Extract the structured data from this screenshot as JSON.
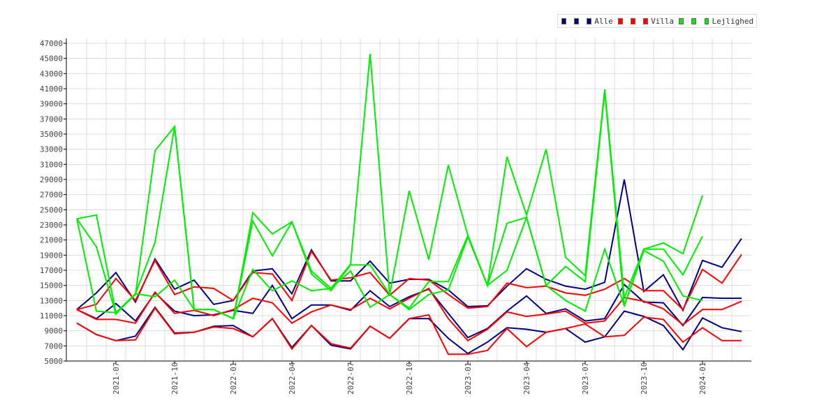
{
  "chart_data": {
    "type": "line",
    "title": "",
    "xlabel": "",
    "ylabel": "",
    "ylim": [
      5000,
      47000
    ],
    "yticks": [
      5000,
      7000,
      9000,
      11000,
      13000,
      15000,
      17000,
      19000,
      21000,
      23000,
      25000,
      27000,
      29000,
      31000,
      33000,
      35000,
      37000,
      39000,
      41000,
      43000,
      45000,
      47000
    ],
    "x": [
      "2021-05",
      "2021-06",
      "2021-07",
      "2021-08",
      "2021-09",
      "2021-10",
      "2021-11",
      "2021-12",
      "2022-01",
      "2022-02",
      "2022-03",
      "2022-04",
      "2022-05",
      "2022-06",
      "2022-07",
      "2022-08",
      "2022-09",
      "2022-10",
      "2022-11",
      "2022-12",
      "2023-01",
      "2023-02",
      "2023-03",
      "2023-04",
      "2023-05",
      "2023-06",
      "2023-07",
      "2023-08",
      "2023-09",
      "2023-10",
      "2023-11",
      "2023-12",
      "2024-01",
      "2024-02",
      "2024-03"
    ],
    "xtick_labels": [
      "2021-07",
      "2021-10",
      "2022-01",
      "2022-04",
      "2022-07",
      "2022-10",
      "2023-01",
      "2023-04",
      "2023-07",
      "2023-10",
      "2024-01"
    ],
    "xtick_index": [
      2,
      5,
      8,
      11,
      14,
      17,
      20,
      23,
      26,
      29,
      32
    ],
    "grid": true,
    "legend_position": "top-right",
    "legend": [
      {
        "label": "",
        "color": "#000080"
      },
      {
        "label": "",
        "color": "#000080"
      },
      {
        "label": "Alle",
        "color": "#000080"
      },
      {
        "label": "",
        "color": "#ff0000"
      },
      {
        "label": "",
        "color": "#ff0000"
      },
      {
        "label": "Villa",
        "color": "#ff0000"
      },
      {
        "label": "",
        "color": "#00ee00"
      },
      {
        "label": "",
        "color": "#00ee00"
      },
      {
        "label": "Lejlighed",
        "color": "#00ee00"
      }
    ],
    "series": [
      {
        "name": "Alle (max)",
        "color": "#000080",
        "values": [
          11800,
          14000,
          16700,
          12800,
          18500,
          14500,
          15700,
          12500,
          13000,
          16900,
          17200,
          13900,
          19700,
          15600,
          15600,
          18200,
          15300,
          15800,
          15800,
          14400,
          12200,
          12300,
          14900,
          17200,
          15800,
          14900,
          14500,
          15400,
          29000,
          14200,
          16400,
          11700,
          18300,
          17400,
          21200
        ]
      },
      {
        "name": "Alle (mid)",
        "color": "#000080",
        "values": [
          11800,
          10600,
          12600,
          10300,
          14000,
          11600,
          11000,
          11100,
          11700,
          11300,
          15000,
          10600,
          12400,
          12400,
          11700,
          14300,
          12200,
          13500,
          14500,
          11300,
          8100,
          9300,
          11600,
          13600,
          11300,
          11900,
          10300,
          10600,
          15100,
          12800,
          12700,
          9700,
          13400,
          13300,
          13300
        ]
      },
      {
        "name": "Alle (min)",
        "color": "#000080",
        "values": [
          10000,
          8500,
          7700,
          8300,
          12100,
          8700,
          8800,
          9600,
          9700,
          8200,
          10600,
          6800,
          9700,
          7100,
          6600,
          9600,
          8000,
          10600,
          10600,
          8000,
          6000,
          7500,
          9400,
          9200,
          8800,
          9300,
          7500,
          8200,
          11600,
          10900,
          9700,
          6500,
          10700,
          9400,
          8900
        ]
      },
      {
        "name": "Villa (max)",
        "color": "#ff0000",
        "values": [
          11800,
          12500,
          15900,
          13000,
          18300,
          13800,
          14800,
          14600,
          13000,
          16700,
          16500,
          13000,
          19500,
          15700,
          16000,
          16700,
          13700,
          15900,
          15700,
          13800,
          12000,
          12200,
          15300,
          14700,
          14900,
          14000,
          13700,
          14500,
          15900,
          14300,
          14300,
          11800,
          17100,
          15300,
          19100
        ]
      },
      {
        "name": "Villa (mid)",
        "color": "#ff0000",
        "values": [
          11800,
          10500,
          10500,
          10000,
          14100,
          11300,
          11700,
          11000,
          11800,
          13300,
          12700,
          10000,
          11500,
          12400,
          11800,
          13300,
          11900,
          13300,
          14600,
          10600,
          7700,
          9200,
          11500,
          10900,
          11200,
          11600,
          10000,
          10300,
          13400,
          12900,
          11900,
          9800,
          11800,
          11800,
          12900
        ]
      },
      {
        "name": "Villa (min)",
        "color": "#ff0000",
        "values": [
          10000,
          8500,
          7700,
          7800,
          12000,
          8600,
          8800,
          9500,
          9300,
          8200,
          10600,
          6600,
          9700,
          7300,
          6700,
          9600,
          8000,
          10600,
          11100,
          5900,
          5900,
          6400,
          9300,
          6900,
          8800,
          9300,
          9900,
          8200,
          8400,
          10800,
          10500,
          7500,
          9400,
          7700,
          7700
        ]
      },
      {
        "name": "Lejlighed (max)",
        "color": "#00ee00",
        "values": [
          23800,
          24300,
          11400,
          13800,
          32800,
          36000,
          11800,
          11800,
          10600,
          24600,
          21800,
          23400,
          16900,
          14600,
          17800,
          45600,
          13800,
          27500,
          18400,
          30900,
          21600,
          15000,
          32000,
          24300,
          33000,
          18700,
          16300,
          40900,
          13400,
          19800,
          20600,
          19200,
          26900,
          null,
          null
        ]
      },
      {
        "name": "Lejlighed (mid)",
        "color": "#00ee00",
        "values": [
          23800,
          20100,
          11200,
          13900,
          20700,
          36000,
          11800,
          11800,
          10600,
          23500,
          18900,
          23400,
          16500,
          14300,
          17700,
          17700,
          13800,
          12000,
          15500,
          15500,
          21600,
          15000,
          23200,
          24000,
          15000,
          17500,
          15500,
          40600,
          12300,
          19800,
          19800,
          16400,
          21500,
          null,
          null
        ]
      },
      {
        "name": "Lejlighed (min)",
        "color": "#00ee00",
        "values": [
          23800,
          11600,
          11400,
          13900,
          13500,
          15700,
          11800,
          11800,
          10600,
          17100,
          14300,
          15600,
          14300,
          14600,
          16900,
          12100,
          13800,
          11800,
          13800,
          14400,
          21400,
          15000,
          17000,
          24000,
          15000,
          13000,
          11600,
          19800,
          12300,
          19600,
          18200,
          13600,
          13000,
          null,
          null
        ]
      }
    ]
  }
}
